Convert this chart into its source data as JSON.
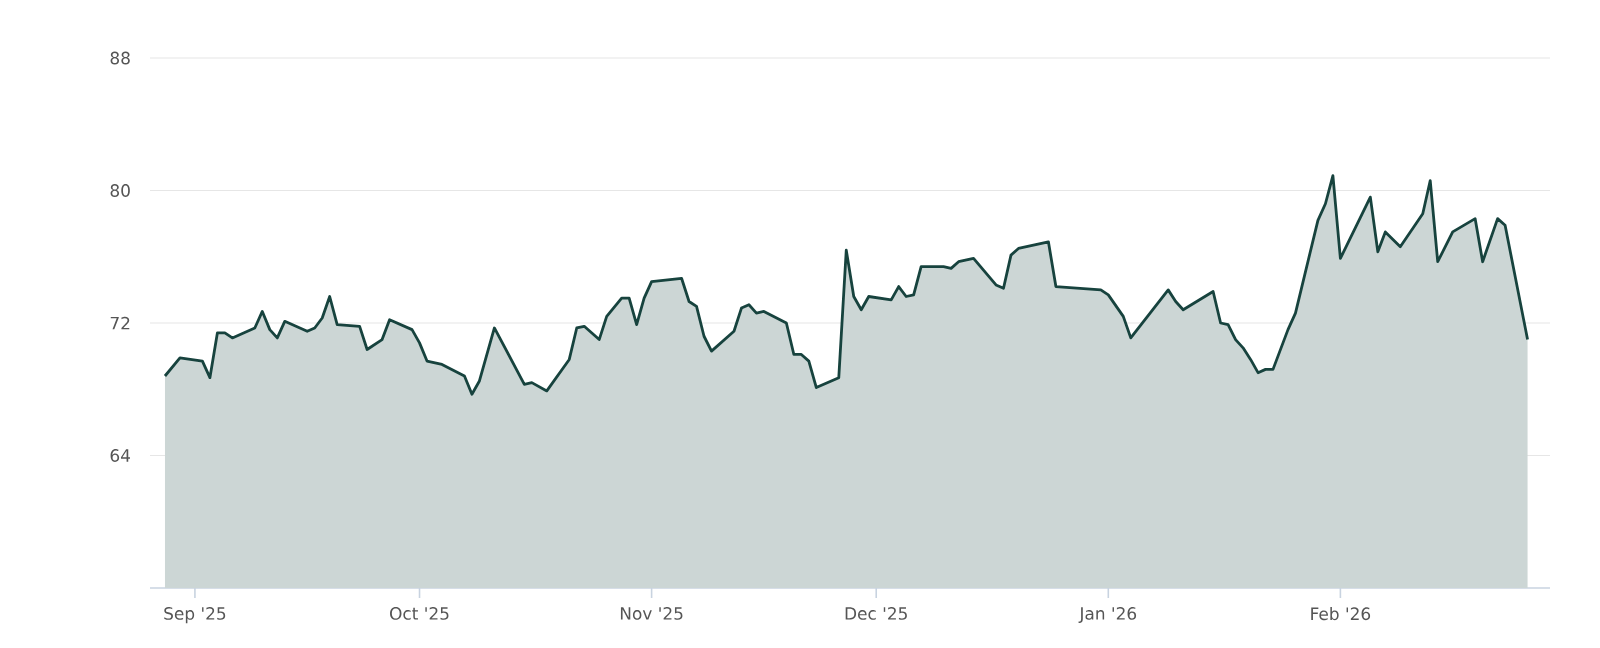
{
  "chart_data": {
    "type": "area",
    "x": [
      "2025-08-28",
      "2025-08-30",
      "2025-09-02",
      "2025-09-03",
      "2025-09-04",
      "2025-09-05",
      "2025-09-06",
      "2025-09-09",
      "2025-09-10",
      "2025-09-11",
      "2025-09-12",
      "2025-09-13",
      "2025-09-16",
      "2025-09-17",
      "2025-09-18",
      "2025-09-19",
      "2025-09-20",
      "2025-09-23",
      "2025-09-24",
      "2025-09-26",
      "2025-09-27",
      "2025-09-30",
      "2025-10-01",
      "2025-10-02",
      "2025-10-04",
      "2025-10-07",
      "2025-10-08",
      "2025-10-09",
      "2025-10-11",
      "2025-10-15",
      "2025-10-16",
      "2025-10-18",
      "2025-10-21",
      "2025-10-22",
      "2025-10-23",
      "2025-10-25",
      "2025-10-26",
      "2025-10-28",
      "2025-10-29",
      "2025-10-30",
      "2025-10-31",
      "2025-11-01",
      "2025-11-05",
      "2025-11-06",
      "2025-11-07",
      "2025-11-08",
      "2025-11-09",
      "2025-11-12",
      "2025-11-13",
      "2025-11-14",
      "2025-11-15",
      "2025-11-16",
      "2025-11-19",
      "2025-11-20",
      "2025-11-21",
      "2025-11-22",
      "2025-11-23",
      "2025-11-26",
      "2025-11-27",
      "2025-11-28",
      "2025-11-29",
      "2025-11-30",
      "2025-12-03",
      "2025-12-04",
      "2025-12-05",
      "2025-12-06",
      "2025-12-07",
      "2025-12-10",
      "2025-12-11",
      "2025-12-12",
      "2025-12-14",
      "2025-12-17",
      "2025-12-18",
      "2025-12-19",
      "2025-12-20",
      "2025-12-24",
      "2025-12-25",
      "2025-12-31",
      "2026-01-01",
      "2026-01-03",
      "2026-01-04",
      "2026-01-09",
      "2026-01-10",
      "2026-01-11",
      "2026-01-15",
      "2026-01-16",
      "2026-01-17",
      "2026-01-18",
      "2026-01-19",
      "2026-01-20",
      "2026-01-21",
      "2026-01-22",
      "2026-01-23",
      "2026-01-25",
      "2026-01-26",
      "2026-01-29",
      "2026-01-30",
      "2026-01-31",
      "2026-02-01",
      "2026-02-05",
      "2026-02-06",
      "2026-02-07",
      "2026-02-09",
      "2026-02-12",
      "2026-02-13",
      "2026-02-14",
      "2026-02-16",
      "2026-02-19",
      "2026-02-20",
      "2026-02-22",
      "2026-02-23",
      "2026-02-26"
    ],
    "series": [
      {
        "color": "#17433e",
        "values": [
          68.8,
          69.9,
          69.7,
          68.7,
          71.4,
          71.4,
          71.1,
          71.7,
          72.7,
          71.6,
          71.1,
          72.1,
          71.5,
          71.7,
          72.3,
          73.6,
          71.9,
          71.8,
          70.4,
          71.0,
          72.2,
          71.6,
          70.8,
          69.7,
          69.5,
          68.8,
          67.7,
          68.5,
          71.7,
          68.3,
          68.4,
          67.9,
          69.8,
          71.7,
          71.8,
          71.0,
          72.4,
          73.5,
          73.5,
          71.9,
          73.5,
          74.5,
          74.7,
          73.3,
          73.0,
          71.2,
          70.3,
          71.5,
          72.9,
          73.1,
          72.6,
          72.7,
          72.0,
          70.1,
          70.1,
          69.7,
          68.1,
          68.7,
          76.4,
          73.6,
          72.8,
          73.6,
          73.4,
          74.2,
          73.6,
          73.7,
          75.4,
          75.4,
          75.3,
          75.7,
          75.9,
          74.3,
          74.1,
          76.1,
          76.5,
          76.9,
          74.2,
          74.0,
          73.7,
          72.4,
          71.1,
          74.0,
          73.3,
          72.8,
          73.9,
          72.0,
          71.9,
          71.0,
          70.5,
          69.8,
          69.0,
          69.2,
          69.2,
          71.6,
          72.6,
          78.2,
          79.2,
          80.9,
          75.9,
          79.6,
          76.3,
          77.5,
          76.6,
          78.6,
          80.6,
          75.7,
          77.5,
          78.3,
          75.7,
          78.3,
          77.9,
          71.0
        ]
      }
    ],
    "xlim": [
      "2025-08-26",
      "2026-03-01"
    ],
    "xticks": [
      {
        "value": "2025-09-01",
        "label": "Sep '25"
      },
      {
        "value": "2025-10-01",
        "label": "Oct '25"
      },
      {
        "value": "2025-11-01",
        "label": "Nov '25"
      },
      {
        "value": "2025-12-01",
        "label": "Dec '25"
      },
      {
        "value": "2026-01-01",
        "label": "Jan '26"
      },
      {
        "value": "2026-02-01",
        "label": "Feb '26"
      }
    ],
    "ylim": [
      56,
      88
    ],
    "yticks": [
      64,
      72,
      80,
      88
    ],
    "grid": "y"
  }
}
